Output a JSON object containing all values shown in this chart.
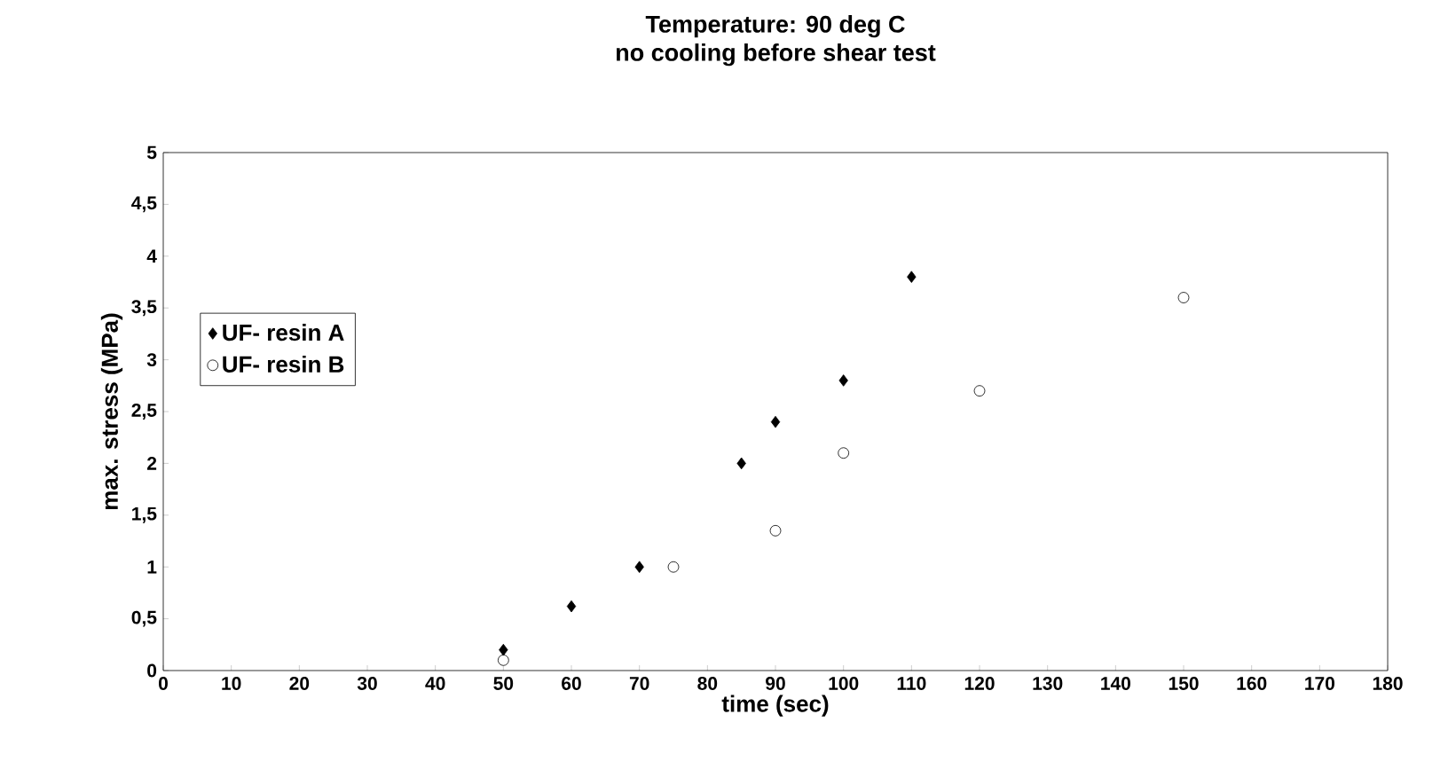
{
  "chart_data": {
    "type": "scatter",
    "title": "Temperature: 90 deg C",
    "subtitle": "no cooling before shear test",
    "xlabel": "time (sec)",
    "ylabel": "max. stress (MPa)",
    "xlim": [
      0,
      180
    ],
    "ylim": [
      0,
      5
    ],
    "xticks": [
      0,
      10,
      20,
      30,
      40,
      50,
      60,
      70,
      80,
      90,
      100,
      110,
      120,
      130,
      140,
      150,
      160,
      170,
      180
    ],
    "yticks": [
      0,
      {
        "value": 0.5,
        "label": "0,5"
      },
      1,
      {
        "value": 1.5,
        "label": "1,5"
      },
      2,
      {
        "value": 2.5,
        "label": "2,5"
      },
      3,
      {
        "value": 3.5,
        "label": "3,5"
      },
      4,
      {
        "value": 4.5,
        "label": "4,5"
      },
      5
    ],
    "grid": false,
    "legend": "left",
    "series": [
      {
        "name": "UF- resin A",
        "color": "#000000",
        "marker": "diamond",
        "x": [
          50,
          60,
          70,
          85,
          90,
          100,
          110
        ],
        "values": [
          0.2,
          0.62,
          1.0,
          2.0,
          2.4,
          2.8,
          3.8
        ]
      },
      {
        "name": "UF- resin B",
        "color": "#000000",
        "marker": "circle",
        "x": [
          50,
          75,
          90,
          100,
          120,
          150
        ],
        "values": [
          0.1,
          1.0,
          1.35,
          2.1,
          2.7,
          3.6
        ]
      }
    ]
  }
}
